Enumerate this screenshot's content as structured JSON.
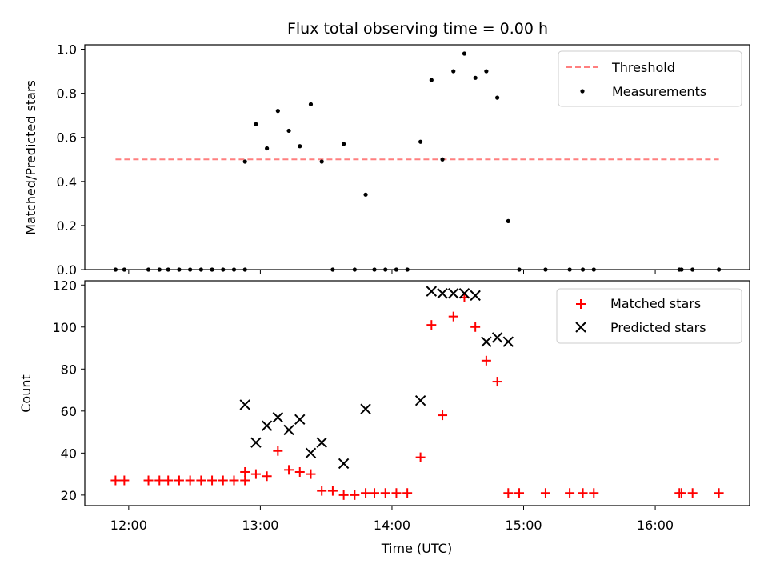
{
  "chart_data": [
    {
      "type": "scatter",
      "title": "Flux total observing time = 0.00 h",
      "xlabel": "",
      "ylabel": "Matched/Predicted stars",
      "ylim": [
        0,
        1.02
      ],
      "xlim": [
        "11:40",
        "16:43"
      ],
      "yticks": [
        "0.0",
        "0.2",
        "0.4",
        "0.6",
        "0.8",
        "1.0"
      ],
      "legend_position": "top-right",
      "grid": false,
      "threshold": {
        "name": "Threshold",
        "value": 0.5,
        "x_range": [
          "11:54",
          "16:29"
        ],
        "color": "#ff7f7f",
        "style": "dashed"
      },
      "series": [
        {
          "name": "Measurements",
          "color": "#000000",
          "marker": "dot",
          "points": [
            [
              "11:54",
              0.0
            ],
            [
              "11:58",
              0.0
            ],
            [
              "12:09",
              0.0
            ],
            [
              "12:14",
              0.0
            ],
            [
              "12:18",
              0.0
            ],
            [
              "12:23",
              0.0
            ],
            [
              "12:28",
              0.0
            ],
            [
              "12:33",
              0.0
            ],
            [
              "12:38",
              0.0
            ],
            [
              "12:43",
              0.0
            ],
            [
              "12:48",
              0.0
            ],
            [
              "12:53",
              0.0
            ],
            [
              "12:53",
              0.49
            ],
            [
              "12:58",
              0.66
            ],
            [
              "13:03",
              0.55
            ],
            [
              "13:08",
              0.72
            ],
            [
              "13:13",
              0.63
            ],
            [
              "13:18",
              0.56
            ],
            [
              "13:23",
              0.75
            ],
            [
              "13:28",
              0.49
            ],
            [
              "13:33",
              0.0
            ],
            [
              "13:38",
              0.57
            ],
            [
              "13:43",
              0.0
            ],
            [
              "13:48",
              0.34
            ],
            [
              "13:52",
              0.0
            ],
            [
              "13:57",
              0.0
            ],
            [
              "14:02",
              0.0
            ],
            [
              "14:07",
              0.0
            ],
            [
              "14:13",
              0.58
            ],
            [
              "14:18",
              0.86
            ],
            [
              "14:23",
              0.5
            ],
            [
              "14:28",
              0.9
            ],
            [
              "14:33",
              0.98
            ],
            [
              "14:38",
              0.87
            ],
            [
              "14:43",
              0.9
            ],
            [
              "14:48",
              0.78
            ],
            [
              "14:53",
              0.22
            ],
            [
              "14:58",
              0.0
            ],
            [
              "15:10",
              0.0
            ],
            [
              "15:21",
              0.0
            ],
            [
              "15:27",
              0.0
            ],
            [
              "15:32",
              0.0
            ],
            [
              "16:11",
              0.0
            ],
            [
              "16:12",
              0.0
            ],
            [
              "16:17",
              0.0
            ],
            [
              "16:29",
              0.0
            ]
          ]
        }
      ]
    },
    {
      "type": "scatter",
      "title": "",
      "xlabel": "Time (UTC)",
      "ylabel": "Count",
      "ylim": [
        15,
        122
      ],
      "xlim": [
        "11:40",
        "16:43"
      ],
      "yticks": [
        "20",
        "40",
        "60",
        "80",
        "100",
        "120"
      ],
      "xticks": [
        "12:00",
        "13:00",
        "14:00",
        "15:00",
        "16:00"
      ],
      "legend_position": "top-right",
      "grid": false,
      "series": [
        {
          "name": "Matched stars",
          "color": "#ff0000",
          "marker": "plus",
          "points": [
            [
              "11:54",
              27
            ],
            [
              "11:58",
              27
            ],
            [
              "12:09",
              27
            ],
            [
              "12:14",
              27
            ],
            [
              "12:18",
              27
            ],
            [
              "12:23",
              27
            ],
            [
              "12:28",
              27
            ],
            [
              "12:33",
              27
            ],
            [
              "12:38",
              27
            ],
            [
              "12:43",
              27
            ],
            [
              "12:48",
              27
            ],
            [
              "12:53",
              27
            ],
            [
              "12:53",
              31
            ],
            [
              "12:58",
              30
            ],
            [
              "13:03",
              29
            ],
            [
              "13:08",
              41
            ],
            [
              "13:13",
              32
            ],
            [
              "13:18",
              31
            ],
            [
              "13:23",
              30
            ],
            [
              "13:28",
              22
            ],
            [
              "13:33",
              22
            ],
            [
              "13:38",
              20
            ],
            [
              "13:43",
              20
            ],
            [
              "13:48",
              21
            ],
            [
              "13:52",
              21
            ],
            [
              "13:57",
              21
            ],
            [
              "14:02",
              21
            ],
            [
              "14:07",
              21
            ],
            [
              "14:13",
              38
            ],
            [
              "14:18",
              101
            ],
            [
              "14:23",
              58
            ],
            [
              "14:28",
              105
            ],
            [
              "14:33",
              114
            ],
            [
              "14:38",
              100
            ],
            [
              "14:43",
              84
            ],
            [
              "14:48",
              74
            ],
            [
              "14:53",
              21
            ],
            [
              "14:58",
              21
            ],
            [
              "15:10",
              21
            ],
            [
              "15:21",
              21
            ],
            [
              "15:27",
              21
            ],
            [
              "15:32",
              21
            ],
            [
              "16:11",
              21
            ],
            [
              "16:12",
              21
            ],
            [
              "16:17",
              21
            ],
            [
              "16:29",
              21
            ]
          ]
        },
        {
          "name": "Predicted stars",
          "color": "#000000",
          "marker": "x",
          "points": [
            [
              "12:53",
              63
            ],
            [
              "12:58",
              45
            ],
            [
              "13:03",
              53
            ],
            [
              "13:08",
              57
            ],
            [
              "13:13",
              51
            ],
            [
              "13:18",
              56
            ],
            [
              "13:23",
              40
            ],
            [
              "13:28",
              45
            ],
            [
              "13:38",
              35
            ],
            [
              "13:48",
              61
            ],
            [
              "14:13",
              65
            ],
            [
              "14:18",
              117
            ],
            [
              "14:23",
              116
            ],
            [
              "14:28",
              116
            ],
            [
              "14:33",
              116
            ],
            [
              "14:38",
              115
            ],
            [
              "14:43",
              93
            ],
            [
              "14:48",
              95
            ],
            [
              "14:53",
              93
            ]
          ]
        }
      ]
    }
  ]
}
